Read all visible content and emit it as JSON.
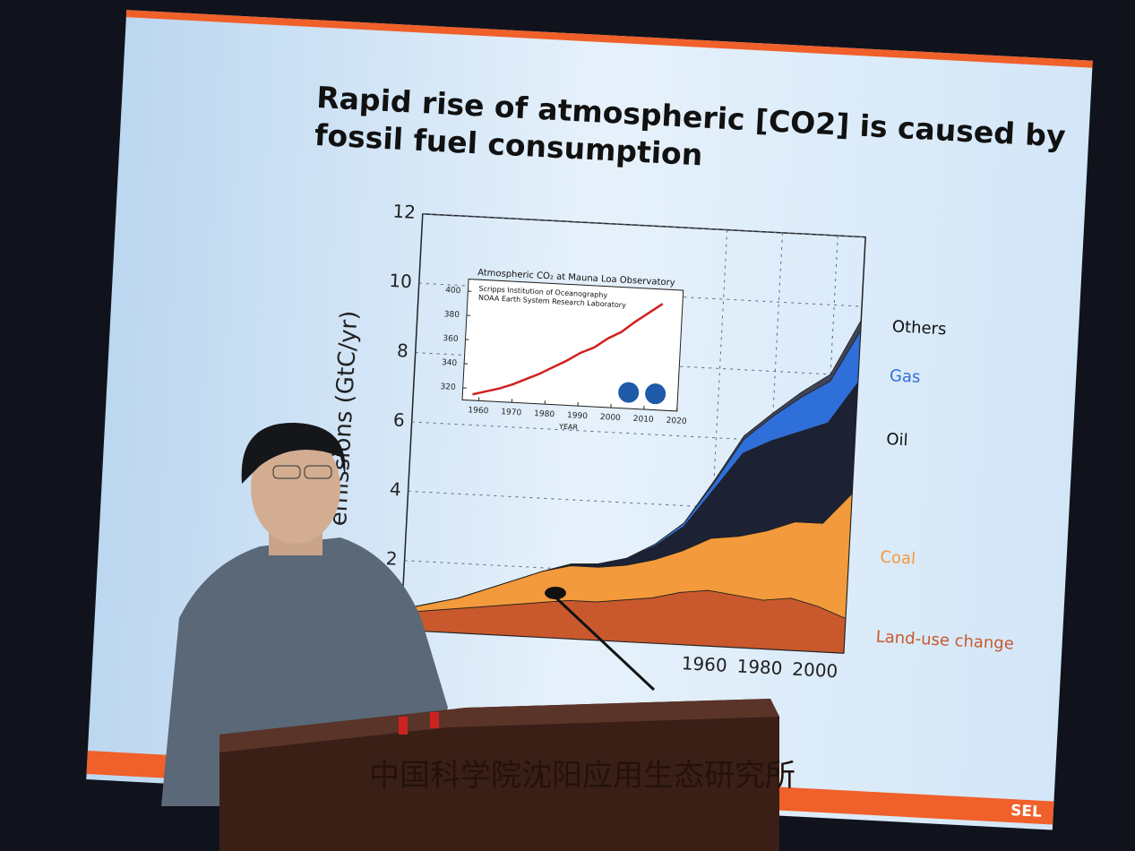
{
  "slide": {
    "title_lines": [
      "Rapid rise of atmospheric [CO2] is caused by",
      "fossil fuel consumption"
    ],
    "logo": "SEL"
  },
  "podium": {
    "text": "中国科学院沈阳应用生态研究所"
  },
  "chart_data": [
    {
      "type": "area",
      "stacked": true,
      "y_label": "emissions (GtC/yr)",
      "x": [
        1850,
        1860,
        1870,
        1880,
        1890,
        1900,
        1910,
        1920,
        1930,
        1940,
        1950,
        1960,
        1970,
        1980,
        1990,
        2000,
        2010
      ],
      "series": [
        {
          "name": "Land-use change",
          "color": "#c9592c",
          "values": [
            0.5,
            0.6,
            0.7,
            0.8,
            0.9,
            1.0,
            1.1,
            1.1,
            1.2,
            1.3,
            1.5,
            1.6,
            1.5,
            1.4,
            1.5,
            1.3,
            1.0
          ]
        },
        {
          "name": "Coal",
          "color": "#f39a3c",
          "values": [
            0.1,
            0.2,
            0.3,
            0.5,
            0.7,
            0.9,
            1.0,
            1.0,
            1.0,
            1.1,
            1.2,
            1.5,
            1.7,
            2.0,
            2.2,
            2.4,
            3.6
          ]
        },
        {
          "name": "Oil",
          "color": "#1c2133",
          "values": [
            0,
            0,
            0,
            0,
            0,
            0,
            0.05,
            0.1,
            0.2,
            0.4,
            0.7,
            1.4,
            2.4,
            2.6,
            2.6,
            2.9,
            3.2
          ]
        },
        {
          "name": "Gas",
          "color": "#2f6fd9",
          "values": [
            0,
            0,
            0,
            0,
            0,
            0,
            0,
            0,
            0,
            0.05,
            0.1,
            0.2,
            0.4,
            0.7,
            1.0,
            1.2,
            1.5
          ]
        },
        {
          "name": "Others",
          "color": "#3f4459",
          "values": [
            0,
            0,
            0,
            0,
            0,
            0,
            0,
            0,
            0,
            0,
            0,
            0.05,
            0.1,
            0.1,
            0.15,
            0.2,
            0.3
          ]
        }
      ],
      "xlim": [
        1850,
        2010
      ],
      "xticks": [
        1960,
        1980,
        2000
      ],
      "ylim": [
        0,
        12
      ],
      "yticks": [
        2,
        4,
        6,
        8,
        10,
        12
      ],
      "grid": true
    },
    {
      "type": "line",
      "title": "Atmospheric CO₂ at Mauna Loa Observatory",
      "annotations": [
        "Scripps Institution of Oceanography",
        "NOAA Earth System Research Laboratory"
      ],
      "x_label": "YEAR",
      "x": [
        1958,
        1962,
        1966,
        1970,
        1974,
        1978,
        1982,
        1986,
        1990,
        1994,
        1998,
        2002,
        2006,
        2010,
        2014
      ],
      "values": [
        315,
        318,
        321,
        325,
        330,
        335,
        341,
        347,
        354,
        359,
        367,
        373,
        382,
        390,
        398
      ],
      "color": "#d02020",
      "xlim": [
        1955,
        2020
      ],
      "xticks": [
        1960,
        1970,
        1980,
        1990,
        2000,
        2010,
        2020
      ],
      "ylim": [
        310,
        410
      ],
      "yticks": [
        320,
        340,
        360,
        380,
        400
      ],
      "grid": false
    }
  ]
}
